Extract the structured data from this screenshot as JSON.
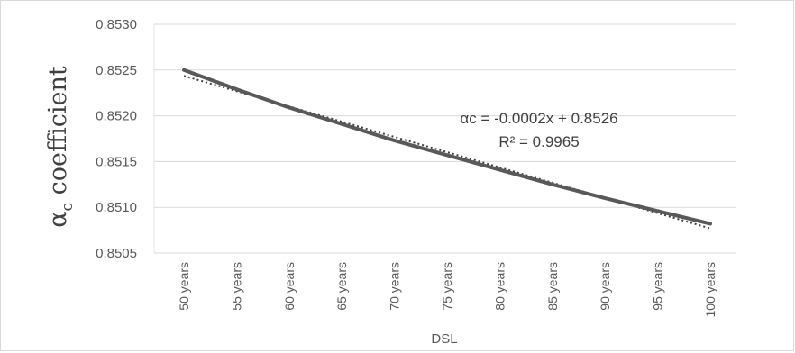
{
  "chart_data": {
    "type": "line",
    "title": "",
    "xlabel": "DSL",
    "ylabel_main": "α",
    "ylabel_sub": "c",
    "ylabel_rest": " coefficient",
    "categories": [
      "50 years",
      "55 years",
      "60 years",
      "65 years",
      "70 years",
      "75 years",
      "80 years",
      "85 years",
      "90 years",
      "95 years",
      "100 years"
    ],
    "series": [
      {
        "values": [
          0.8525,
          0.85229,
          0.85209,
          0.85191,
          0.85173,
          0.85157,
          0.85141,
          0.85125,
          0.8511,
          0.85096,
          0.85082
        ],
        "color": "#595959",
        "style": "solid"
      }
    ],
    "trendline": {
      "style": "dotted",
      "color": "#404040",
      "equation": "αc = -0.0002x + 0.8526",
      "r_squared": "R² = 0.9965"
    },
    "yticks": [
      "0.8505",
      "0.8510",
      "0.8515",
      "0.8520",
      "0.8525",
      "0.8530"
    ],
    "ylim": [
      0.8505,
      0.853
    ],
    "grid": true,
    "legend": "none"
  }
}
